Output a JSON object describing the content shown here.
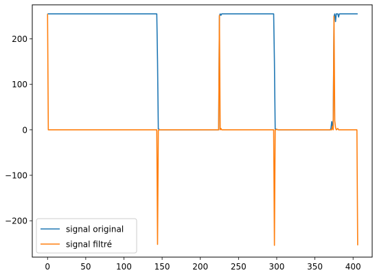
{
  "chart_data": {
    "type": "line",
    "title": "",
    "xlabel": "",
    "ylabel": "",
    "xlim": [
      -20,
      425
    ],
    "ylim": [
      -280,
      275
    ],
    "x_ticks": [
      0,
      50,
      100,
      150,
      200,
      250,
      300,
      350,
      400
    ],
    "y_ticks": [
      -200,
      -100,
      0,
      100,
      200
    ],
    "grid": false,
    "legend_position": "lower-left",
    "series": [
      {
        "name": "signal original",
        "color": "#1f77b4",
        "points": [
          [
            0,
            255
          ],
          [
            143,
            255
          ],
          [
            144,
            150
          ],
          [
            145,
            2
          ],
          [
            147,
            0
          ],
          [
            224,
            0
          ],
          [
            225,
            250
          ],
          [
            226,
            255
          ],
          [
            227,
            252
          ],
          [
            228,
            255
          ],
          [
            296,
            255
          ],
          [
            297,
            150
          ],
          [
            298,
            2
          ],
          [
            300,
            1
          ],
          [
            302,
            0
          ],
          [
            370,
            0
          ],
          [
            371,
            3
          ],
          [
            372,
            18
          ],
          [
            373,
            5
          ],
          [
            374,
            22
          ],
          [
            375,
            250
          ],
          [
            376,
            255
          ],
          [
            377,
            238
          ],
          [
            378,
            255
          ],
          [
            380,
            255
          ],
          [
            381,
            248
          ],
          [
            382,
            255
          ],
          [
            406,
            255
          ]
        ]
      },
      {
        "name": "signal filtré",
        "color": "#ff7f0e",
        "points": [
          [
            0,
            255
          ],
          [
            1,
            0
          ],
          [
            143,
            0
          ],
          [
            144,
            -252
          ],
          [
            145,
            -2
          ],
          [
            146,
            0
          ],
          [
            224,
            0
          ],
          [
            225,
            252
          ],
          [
            226,
            0
          ],
          [
            227,
            3
          ],
          [
            228,
            0
          ],
          [
            296,
            0
          ],
          [
            297,
            -254
          ],
          [
            298,
            0
          ],
          [
            300,
            1
          ],
          [
            302,
            0
          ],
          [
            372,
            0
          ],
          [
            373,
            8
          ],
          [
            374,
            0
          ],
          [
            375,
            250
          ],
          [
            376,
            20
          ],
          [
            377,
            5
          ],
          [
            378,
            0
          ],
          [
            380,
            3
          ],
          [
            381,
            0
          ],
          [
            383,
            0
          ],
          [
            405,
            0
          ],
          [
            406,
            -254
          ]
        ]
      }
    ]
  }
}
